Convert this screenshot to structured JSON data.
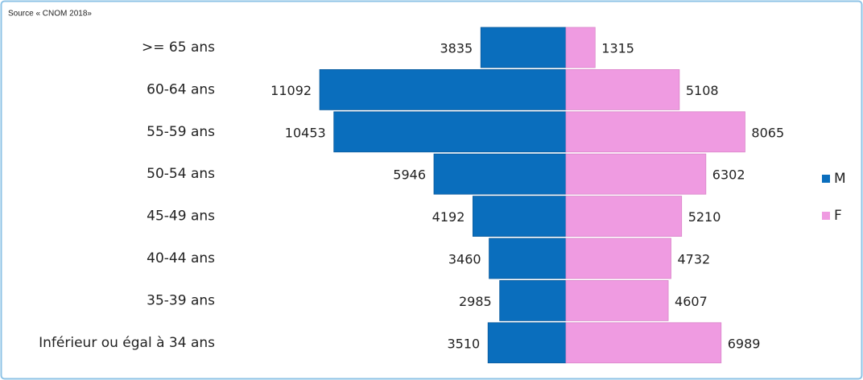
{
  "chart_data": {
    "type": "pyramid",
    "source": "Source « CNOM 2018»",
    "categories": [
      ">= 65 ans",
      "60-64 ans",
      "55-59 ans",
      "50-54 ans",
      "45-49 ans",
      "40-44 ans",
      "35-39 ans",
      "Inférieur ou égal à 34 ans"
    ],
    "series": [
      {
        "name": "M",
        "color": "#0a6ebd",
        "values": [
          3835,
          11092,
          10453,
          5946,
          4192,
          3460,
          2985,
          3510
        ]
      },
      {
        "name": "F",
        "color": "#ef9be1",
        "values": [
          1315,
          5108,
          8065,
          6302,
          5210,
          4732,
          4607,
          6989
        ]
      }
    ],
    "legend": "right"
  }
}
